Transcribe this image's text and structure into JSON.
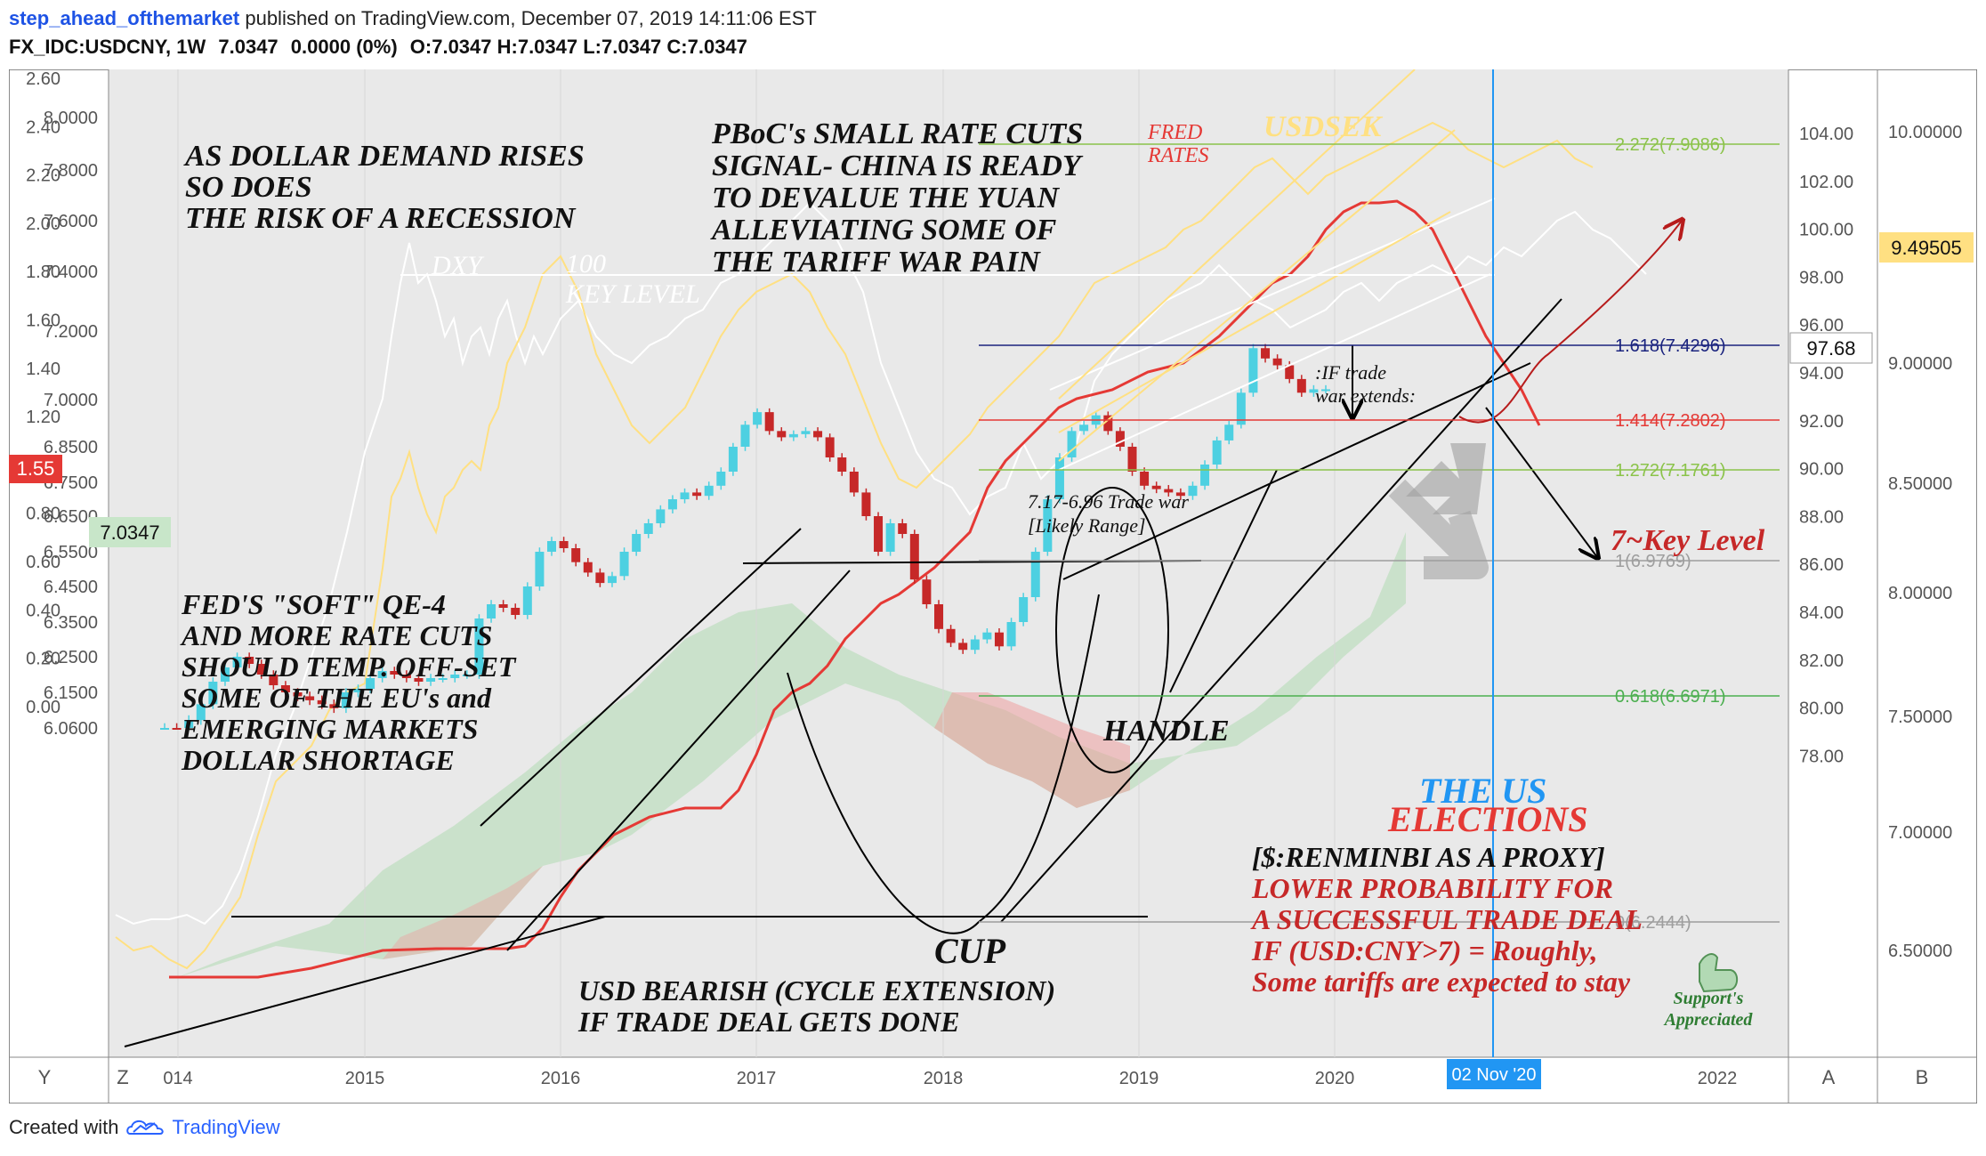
{
  "header": {
    "author": "step_ahead_ofthemarket",
    "published": "published on TradingView.com, December 07, 2019 14:11:06 EST",
    "symbol": "FX_IDC:USDCNY, 1W",
    "last": "7.0347",
    "change": "0.0000 (0%)",
    "ohlc": "O:7.0347 H:7.0347 L:7.0347 C:7.0347"
  },
  "footer": {
    "created": "Created with",
    "brand": "TradingView"
  },
  "colors": {
    "usdcny_up": "#4dd0e1",
    "usdcny_down": "#c62828",
    "dxy": "#ffffff",
    "usdsek": "#ffe082",
    "fed": "#e53935",
    "panel_bg": "#e9e9e9",
    "cloud_green": "#a5d6a7",
    "cloud_red": "#ef9a9a",
    "timeline": "#2196f3"
  },
  "chart_data": {
    "type": "candlestick",
    "title": "FX_IDC:USDCNY, 1W",
    "x_ticks": [
      "014",
      "2015",
      "2016",
      "2017",
      "2018",
      "2019",
      "2020",
      "2022"
    ],
    "axes": {
      "usdcny_right_of_left": [
        "8.0000",
        "7.8000",
        "7.6000",
        "7.4000",
        "7.2000",
        "7.0000",
        "6.8500",
        "6.7500",
        "6.6500",
        "6.5500",
        "6.4500",
        "6.3500",
        "6.2500",
        "6.1500",
        "6.0600"
      ],
      "fed_rate_left": [
        "2.60",
        "2.40",
        "2.20",
        "2.00",
        "1.80",
        "1.60",
        "1.40",
        "1.20",
        "1.00",
        "0.80",
        "0.60",
        "0.40",
        "0.20",
        "0.00"
      ],
      "dxy_right": [
        "104.00",
        "102.00",
        "100.00",
        "98.00",
        "96.00",
        "94.00",
        "92.00",
        "90.00",
        "88.00",
        "86.00",
        "84.00",
        "82.00",
        "80.00",
        "78.00"
      ],
      "usdsek_far_right": [
        "10.00000",
        "9.00000",
        "8.50000",
        "8.00000",
        "7.50000",
        "7.00000",
        "6.50000"
      ],
      "last_labels": {
        "fed": "1.55",
        "usdcny": "7.0347",
        "dxy": "97.68",
        "usdsek": "9.49505"
      }
    },
    "series": [
      {
        "name": "USDCNY",
        "candles_close": [
          6.06,
          6.05,
          6.08,
          6.12,
          6.18,
          6.22,
          6.25,
          6.23,
          6.2,
          6.17,
          6.15,
          6.14,
          6.13,
          6.12,
          6.11,
          6.15,
          6.16,
          6.19,
          6.21,
          6.2,
          6.19,
          6.18,
          6.19,
          6.19,
          6.2,
          6.2,
          6.36,
          6.4,
          6.39,
          6.37,
          6.45,
          6.55,
          6.58,
          6.56,
          6.52,
          6.49,
          6.46,
          6.48,
          6.55,
          6.6,
          6.63,
          6.67,
          6.7,
          6.72,
          6.71,
          6.74,
          6.78,
          6.85,
          6.92,
          6.96,
          6.9,
          6.88,
          6.89,
          6.9,
          6.88,
          6.82,
          6.78,
          6.72,
          6.65,
          6.55,
          6.63,
          6.6,
          6.47,
          6.4,
          6.33,
          6.29,
          6.27,
          6.3,
          6.32,
          6.28,
          6.35,
          6.42,
          6.55,
          6.7,
          6.82,
          6.9,
          6.92,
          6.95,
          6.9,
          6.85,
          6.78,
          6.74,
          6.73,
          6.72,
          6.71,
          6.74,
          6.8,
          6.87,
          6.92,
          7.02,
          7.15,
          7.12,
          7.1,
          7.06,
          7.02,
          7.03,
          7.03
        ]
      },
      {
        "name": "DXY"
      },
      {
        "name": "USDSEK"
      },
      {
        "name": "FED RATES"
      }
    ],
    "fib_levels": [
      {
        "label": "2.272(7.9086)"
      },
      {
        "label": "1.618(7.4296)"
      },
      {
        "label": "1.414(7.2802)"
      },
      {
        "label": "1.272(7.1761)"
      },
      {
        "label": "1(6.9769)"
      },
      {
        "label": "0.618(6.6971)"
      },
      {
        "label": "0(6.2444)"
      }
    ],
    "vline_label": "02 Nov '20",
    "annotations": {
      "dollar_demand": [
        "AS DOLLAR DEMAND RISES",
        "SO DOES",
        "THE RISK OF A RECESSION"
      ],
      "pboc": [
        "PBoC's SMALL RATE CUTS",
        "SIGNAL- CHINA IS READY",
        "TO DEVALUE THE YUAN",
        "ALLEVIATING SOME OF",
        "THE TARIFF WAR PAIN"
      ],
      "fed_rates": [
        "FRED",
        "RATES"
      ],
      "usdsek": "USDSEK",
      "dxy": "DXY",
      "dxy_level": [
        "100",
        "KEY LEVEL"
      ],
      "trade_war_extends": [
        ":IF trade",
        "war extends:"
      ],
      "range": [
        "7.17-6.96 Trade war",
        "[Likely Range]"
      ],
      "key_level": "7~Key Level",
      "fed_qe": [
        "FED'S \"SOFT\" QE-4",
        "AND MORE RATE CUTS",
        "SHOULD TEMP. OFF-SET",
        "SOME OF THE EU's and",
        "EMERGING MARKETS",
        "DOLLAR SHORTAGE"
      ],
      "handle": "HANDLE",
      "cup": "CUP",
      "bearish": [
        "USD BEARISH (CYCLE EXTENSION)",
        "IF TRADE DEAL GETS DONE"
      ],
      "the_us": "THE US",
      "elections": "ELECTIONS",
      "proxy": "[$:RENMINBI AS A PROXY]",
      "probability": [
        "LOWER PROBABILITY FOR",
        "A SUCCESSFUL TRADE DEAL",
        "IF (USD:CNY>7) = Roughly,",
        "Some tariffs are expected to stay"
      ],
      "support": [
        "Support's",
        "Appreciated"
      ]
    },
    "corner_buttons": [
      "Y",
      "Z",
      "A",
      "B"
    ]
  }
}
